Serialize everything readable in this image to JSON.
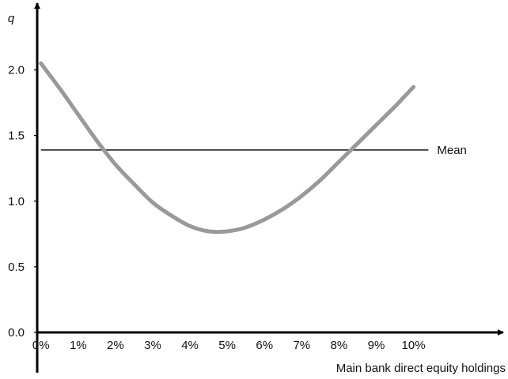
{
  "chart_data": {
    "type": "line",
    "title": "",
    "xlabel": "Main bank direct equity holdings",
    "ylabel": "q",
    "x_tick_labels": [
      "0%",
      "1%",
      "2%",
      "3%",
      "4%",
      "5%",
      "6%",
      "7%",
      "8%",
      "9%",
      "10%"
    ],
    "y_tick_labels": [
      "0.0",
      "0.5",
      "1.0",
      "1.5",
      "2.0"
    ],
    "y_ticks": [
      0.0,
      0.5,
      1.0,
      1.5,
      2.0
    ],
    "xlim": [
      -0.1,
      11.9
    ],
    "ylim": [
      0,
      2.4
    ],
    "grid": false,
    "series": [
      {
        "name": "",
        "color": "#999999",
        "points": [
          {
            "x": 0,
            "y": 2.05
          },
          {
            "x": 0.5,
            "y": 1.86
          },
          {
            "x": 1,
            "y": 1.66
          },
          {
            "x": 1.5,
            "y": 1.46
          },
          {
            "x": 2,
            "y": 1.28
          },
          {
            "x": 2.5,
            "y": 1.13
          },
          {
            "x": 3,
            "y": 0.99
          },
          {
            "x": 3.5,
            "y": 0.89
          },
          {
            "x": 4,
            "y": 0.81
          },
          {
            "x": 4.5,
            "y": 0.77
          },
          {
            "x": 5,
            "y": 0.77
          },
          {
            "x": 5.5,
            "y": 0.8
          },
          {
            "x": 6,
            "y": 0.86
          },
          {
            "x": 6.5,
            "y": 0.94
          },
          {
            "x": 7,
            "y": 1.04
          },
          {
            "x": 7.5,
            "y": 1.16
          },
          {
            "x": 8,
            "y": 1.3
          },
          {
            "x": 8.5,
            "y": 1.44
          },
          {
            "x": 9,
            "y": 1.58
          },
          {
            "x": 9.5,
            "y": 1.72
          },
          {
            "x": 10,
            "y": 1.87
          }
        ]
      }
    ],
    "reference_line": {
      "label": "Mean",
      "y": 1.39,
      "x_start": 0,
      "x_end": 10.4,
      "color": "#000000"
    }
  }
}
